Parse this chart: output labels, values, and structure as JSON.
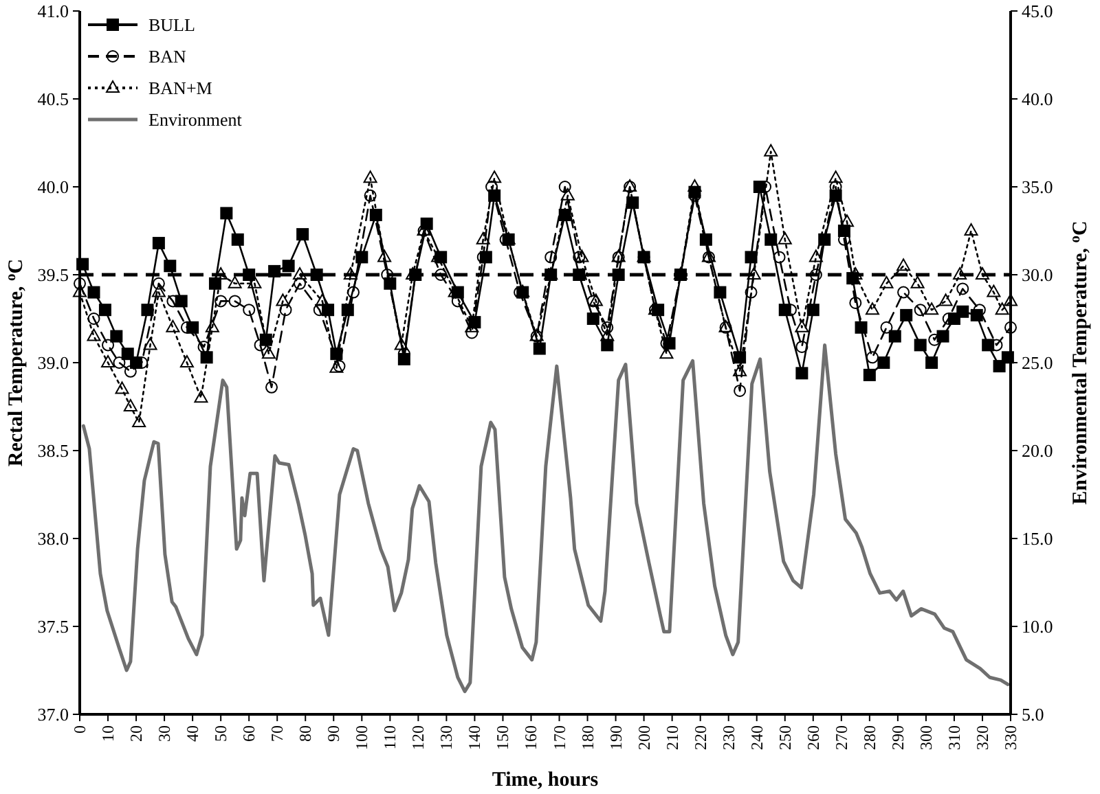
{
  "chart_data": {
    "type": "line",
    "xlabel": "Time, hours",
    "ylabel": "Rectal Temperature, $^{o}$C",
    "y2label": "Environmental Temperature, $^{o}$C",
    "xlim": [
      0,
      330
    ],
    "xticks": [
      0,
      10,
      20,
      30,
      40,
      50,
      60,
      70,
      80,
      90,
      100,
      110,
      120,
      130,
      140,
      150,
      160,
      170,
      180,
      190,
      200,
      210,
      220,
      230,
      240,
      250,
      260,
      270,
      280,
      290,
      300,
      310,
      320,
      330
    ],
    "ylim": [
      37,
      41
    ],
    "yticks": [
      {
        "value": 37,
        "label": "37.0"
      },
      {
        "value": 37.5,
        "label": "37.5"
      },
      {
        "value": 38,
        "label": "38.0"
      },
      {
        "value": 38.5,
        "label": "38.5"
      },
      {
        "value": 39,
        "label": "39.0"
      },
      {
        "value": 39.5,
        "label": "39.5"
      },
      {
        "value": 40,
        "label": "40.0"
      },
      {
        "value": 40.5,
        "label": "40.5"
      },
      {
        "value": 41,
        "label": "41.0"
      }
    ],
    "y2lim": [
      5,
      45
    ],
    "y2ticks": [
      {
        "value": 5,
        "label": "5.0"
      },
      {
        "value": 10,
        "label": "10.0"
      },
      {
        "value": 15,
        "label": "15.0"
      },
      {
        "value": 20,
        "label": "20.0"
      },
      {
        "value": 25,
        "label": "25.0"
      },
      {
        "value": 30,
        "label": "30.0"
      },
      {
        "value": 35,
        "label": "35.0"
      },
      {
        "value": 40,
        "label": "40.0"
      },
      {
        "value": 45,
        "label": "45.0"
      }
    ],
    "grid": false,
    "legend": "top left",
    "ref_lines": [
      {
        "axis": "y",
        "value": 39.5,
        "color": "#000000",
        "line_style": "dashed"
      }
    ],
    "series": [
      {
        "name": "BULL",
        "color": "#000000",
        "marker": "square",
        "line_style": "solid",
        "x": [
          1,
          5,
          9,
          13,
          17,
          20,
          24,
          28,
          32,
          36,
          40,
          45,
          48,
          52,
          56,
          60,
          66,
          69,
          74,
          79,
          84,
          88,
          91,
          95,
          100,
          105,
          110,
          115,
          119,
          123,
          128,
          134,
          140,
          144,
          147,
          152,
          157,
          163,
          167,
          172,
          177,
          182,
          187,
          191,
          196,
          200,
          205,
          209,
          213,
          218,
          222,
          227,
          234,
          238,
          241,
          245,
          250,
          256,
          260,
          264,
          268,
          271,
          274,
          277,
          280,
          285,
          289,
          293,
          298,
          302,
          306,
          310,
          313,
          318,
          322,
          326,
          329
        ],
        "values": [
          39.56,
          39.4,
          39.3,
          39.15,
          39.05,
          39.0,
          39.3,
          39.68,
          39.55,
          39.35,
          39.2,
          39.03,
          39.45,
          39.85,
          39.7,
          39.5,
          39.13,
          39.52,
          39.55,
          39.73,
          39.5,
          39.3,
          39.05,
          39.3,
          39.6,
          39.84,
          39.45,
          39.02,
          39.5,
          39.79,
          39.6,
          39.4,
          39.23,
          39.6,
          39.95,
          39.7,
          39.4,
          39.08,
          39.5,
          39.84,
          39.5,
          39.25,
          39.1,
          39.5,
          39.91,
          39.6,
          39.3,
          39.11,
          39.5,
          39.97,
          39.7,
          39.4,
          39.03,
          39.6,
          40.0,
          39.7,
          39.3,
          38.94,
          39.3,
          39.7,
          39.95,
          39.75,
          39.48,
          39.2,
          38.93,
          39.0,
          39.15,
          39.27,
          39.1,
          39.0,
          39.15,
          39.25,
          39.29,
          39.27,
          39.1,
          38.98,
          39.03
        ]
      },
      {
        "name": "BAN",
        "color": "#000000",
        "marker": "circle",
        "line_style": "dashed",
        "x": [
          0,
          5,
          10,
          14,
          18,
          22,
          28,
          33,
          38,
          44,
          50,
          55,
          60,
          64,
          68,
          73,
          78,
          85,
          92,
          97,
          103,
          109,
          115,
          119,
          122,
          128,
          134,
          139,
          143,
          146,
          151,
          156,
          162,
          167,
          172,
          177,
          182,
          187,
          191,
          195,
          200,
          204,
          208,
          213,
          218,
          223,
          229,
          234,
          238,
          243,
          248,
          252,
          256,
          261,
          268,
          271,
          275,
          281,
          286,
          292,
          298,
          303,
          308,
          313,
          319,
          325,
          330
        ],
        "values": [
          39.45,
          39.25,
          39.1,
          39.0,
          38.95,
          39.0,
          39.45,
          39.35,
          39.2,
          39.09,
          39.35,
          39.35,
          39.3,
          39.1,
          38.86,
          39.3,
          39.45,
          39.3,
          38.98,
          39.4,
          39.95,
          39.5,
          39.05,
          39.5,
          39.75,
          39.5,
          39.35,
          39.17,
          39.6,
          40.0,
          39.7,
          39.4,
          39.15,
          39.6,
          40.0,
          39.6,
          39.35,
          39.2,
          39.6,
          40.0,
          39.6,
          39.3,
          39.11,
          39.5,
          39.95,
          39.6,
          39.2,
          38.84,
          39.4,
          40.0,
          39.6,
          39.3,
          39.09,
          39.5,
          40.0,
          39.7,
          39.34,
          39.03,
          39.2,
          39.4,
          39.3,
          39.13,
          39.25,
          39.42,
          39.3,
          39.1,
          39.2
        ]
      },
      {
        "name": "BAN+M",
        "color": "#000000",
        "marker": "triangle",
        "line_style": "dotted",
        "x": [
          0,
          5,
          10,
          15,
          18,
          21,
          25,
          28,
          33,
          38,
          43,
          47,
          50,
          55,
          62,
          67,
          72,
          78,
          86,
          91,
          96,
          103,
          108,
          114,
          118,
          122,
          127,
          133,
          139,
          143,
          147,
          152,
          157,
          162,
          167,
          173,
          178,
          183,
          187,
          191,
          195,
          200,
          204,
          208,
          213,
          218,
          223,
          229,
          234,
          239,
          245,
          250,
          256,
          261,
          268,
          272,
          275,
          281,
          286,
          292,
          297,
          302,
          307,
          312,
          316,
          320,
          324,
          327,
          330
        ],
        "values": [
          39.4,
          39.15,
          39.0,
          38.85,
          38.75,
          38.66,
          39.1,
          39.4,
          39.2,
          39.0,
          38.8,
          39.2,
          39.5,
          39.45,
          39.45,
          39.05,
          39.35,
          39.5,
          39.35,
          38.97,
          39.5,
          40.05,
          39.6,
          39.1,
          39.5,
          39.75,
          39.6,
          39.4,
          39.2,
          39.7,
          40.05,
          39.7,
          39.4,
          39.15,
          39.5,
          39.95,
          39.6,
          39.35,
          39.15,
          39.6,
          40.0,
          39.6,
          39.3,
          39.05,
          39.5,
          40.0,
          39.6,
          39.2,
          38.95,
          39.5,
          40.2,
          39.7,
          39.2,
          39.6,
          40.05,
          39.8,
          39.5,
          39.3,
          39.45,
          39.55,
          39.45,
          39.3,
          39.35,
          39.5,
          39.75,
          39.5,
          39.4,
          39.3,
          39.35
        ]
      },
      {
        "name": "Environment",
        "color": "#6f6f6f",
        "marker": "none",
        "line_style": "solid",
        "axis": "y2",
        "x": [
          1.3,
          3.4,
          7.3,
          9.7,
          14.1,
          16.6,
          18,
          20.5,
          22.9,
          26.3,
          27.8,
          30.2,
          32.7,
          34.1,
          38.5,
          41.4,
          43.4,
          46.3,
          50.7,
          52.1,
          55.6,
          57,
          57.5,
          58.5,
          60.4,
          62.9,
          65.3,
          69.2,
          70.7,
          74.1,
          77.5,
          79.9,
          82.4,
          82.8,
          85.3,
          88.2,
          92.1,
          97,
          98.4,
          102.3,
          106.7,
          109.2,
          111.6,
          114,
          116.5,
          117.9,
          120.4,
          123.8,
          126.2,
          130.1,
          134,
          136.5,
          138.4,
          142.3,
          145.7,
          147.2,
          150.6,
          153,
          156.9,
          160.3,
          161.8,
          165.2,
          169.1,
          174,
          175.4,
          180.3,
          184.7,
          186.2,
          191,
          193.5,
          197.4,
          201.8,
          205.7,
          207.1,
          209.1,
          213.9,
          217.3,
          221.2,
          225.1,
          229,
          231.5,
          233.4,
          238.3,
          241.2,
          244.6,
          249.5,
          252.9,
          255.8,
          260.2,
          264.1,
          268,
          271.4,
          275.3,
          277.3,
          280.2,
          283.6,
          287.1,
          289.5,
          291.9,
          294.8,
          298.3,
          303.1,
          306.5,
          309.5,
          314.3,
          319.2,
          322.6,
          326.5,
          329
        ],
        "values": [
          21.4,
          20.1,
          13.0,
          10.9,
          8.7,
          7.5,
          8.0,
          14.4,
          18.3,
          20.5,
          20.4,
          14.1,
          11.4,
          11.1,
          9.3,
          8.4,
          9.5,
          19.1,
          24.0,
          23.6,
          14.4,
          14.9,
          17.3,
          16.3,
          18.7,
          18.7,
          12.6,
          19.7,
          19.3,
          19.2,
          17.0,
          15.2,
          13.0,
          11.2,
          11.6,
          9.5,
          17.5,
          20.1,
          20.0,
          17.0,
          14.4,
          13.4,
          10.9,
          11.9,
          13.8,
          16.7,
          18.0,
          17.1,
          13.6,
          9.5,
          7.1,
          6.3,
          6.8,
          19.1,
          21.6,
          21.2,
          12.8,
          11.0,
          8.8,
          8.1,
          9.1,
          19.1,
          24.8,
          17.3,
          14.4,
          11.2,
          10.3,
          12.0,
          24.0,
          24.9,
          17.0,
          13.6,
          10.7,
          9.7,
          9.7,
          24.0,
          25.1,
          17.0,
          12.3,
          9.5,
          8.4,
          9.1,
          23.8,
          25.2,
          18.8,
          13.7,
          12.6,
          12.2,
          17.5,
          26.0,
          19.8,
          16.1,
          15.3,
          14.5,
          13.0,
          11.9,
          12.0,
          11.5,
          12.0,
          10.6,
          11.0,
          10.7,
          9.9,
          9.7,
          8.1,
          7.6,
          7.1,
          6.95,
          6.7
        ]
      }
    ]
  }
}
